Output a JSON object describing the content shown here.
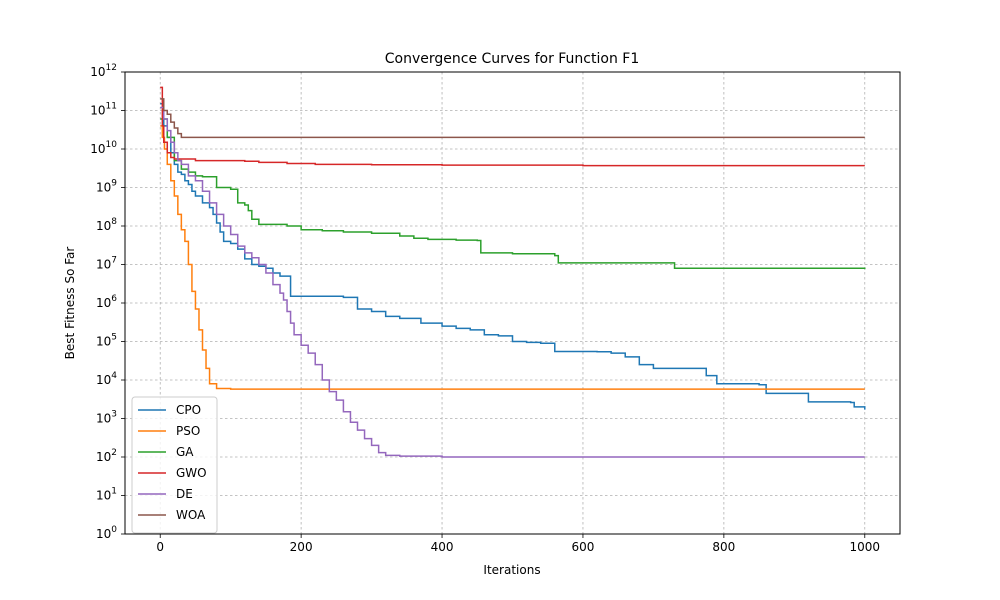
{
  "chart_data": {
    "type": "line",
    "title": "Convergence Curves for Function F1",
    "xlabel": "Iterations",
    "ylabel": "Best Fitness So Far",
    "xlim": [
      -50,
      1050
    ],
    "ylim": [
      1,
      1000000000000
    ],
    "yscale": "log",
    "grid": true,
    "legend_position": "lower-left",
    "x_ticks": [
      0,
      200,
      400,
      600,
      800,
      1000
    ],
    "y_tick_exponents": [
      0,
      1,
      2,
      3,
      4,
      5,
      6,
      7,
      8,
      9,
      10,
      11,
      12
    ],
    "series": [
      {
        "name": "CPO",
        "color": "#1f77b4",
        "points": [
          [
            0,
            150000000000
          ],
          [
            5,
            40000000000
          ],
          [
            10,
            20000000000
          ],
          [
            15,
            8000000000
          ],
          [
            20,
            4000000000
          ],
          [
            25,
            2500000000
          ],
          [
            30,
            2200000000
          ],
          [
            35,
            1500000000
          ],
          [
            40,
            1200000000
          ],
          [
            45,
            800000000
          ],
          [
            50,
            600000000
          ],
          [
            60,
            400000000
          ],
          [
            70,
            300000000
          ],
          [
            75,
            200000000
          ],
          [
            80,
            120000000
          ],
          [
            85,
            70000000
          ],
          [
            90,
            40000000
          ],
          [
            100,
            35000000
          ],
          [
            110,
            25000000
          ],
          [
            120,
            14000000
          ],
          [
            130,
            10000000
          ],
          [
            140,
            9000000
          ],
          [
            150,
            8000000
          ],
          [
            160,
            6000000
          ],
          [
            170,
            5000000
          ],
          [
            185,
            1500000
          ],
          [
            200,
            1500000
          ],
          [
            260,
            1400000
          ],
          [
            280,
            700000
          ],
          [
            300,
            600000
          ],
          [
            320,
            450000
          ],
          [
            340,
            400000
          ],
          [
            370,
            300000
          ],
          [
            400,
            250000
          ],
          [
            420,
            220000
          ],
          [
            440,
            200000
          ],
          [
            460,
            150000
          ],
          [
            480,
            140000
          ],
          [
            500,
            100000
          ],
          [
            520,
            95000
          ],
          [
            540,
            90000
          ],
          [
            560,
            55000
          ],
          [
            620,
            54000
          ],
          [
            640,
            50000
          ],
          [
            660,
            40000
          ],
          [
            680,
            25000
          ],
          [
            700,
            20000
          ],
          [
            760,
            20000
          ],
          [
            775,
            13000
          ],
          [
            790,
            8000
          ],
          [
            850,
            7500
          ],
          [
            860,
            4500
          ],
          [
            910,
            4500
          ],
          [
            920,
            2700
          ],
          [
            980,
            2600
          ],
          [
            985,
            2000
          ],
          [
            1000,
            1700
          ]
        ]
      },
      {
        "name": "PSO",
        "color": "#ff7f0e",
        "points": [
          [
            0,
            40000000000
          ],
          [
            3,
            20000000000
          ],
          [
            6,
            10000000000
          ],
          [
            10,
            4000000000
          ],
          [
            15,
            1500000000
          ],
          [
            20,
            600000000
          ],
          [
            25,
            200000000
          ],
          [
            30,
            80000000
          ],
          [
            35,
            40000000
          ],
          [
            40,
            10000000
          ],
          [
            45,
            2000000
          ],
          [
            50,
            700000
          ],
          [
            55,
            200000
          ],
          [
            60,
            60000
          ],
          [
            65,
            20000
          ],
          [
            70,
            8000
          ],
          [
            80,
            6000
          ],
          [
            100,
            5800
          ],
          [
            200,
            5800
          ],
          [
            600,
            5800
          ],
          [
            1000,
            5800
          ]
        ]
      },
      {
        "name": "GA",
        "color": "#2ca02c",
        "points": [
          [
            0,
            60000000000
          ],
          [
            10,
            20000000000
          ],
          [
            20,
            5000000000
          ],
          [
            30,
            3000000000
          ],
          [
            40,
            2500000000
          ],
          [
            50,
            2000000000
          ],
          [
            60,
            1900000000
          ],
          [
            80,
            1000000000
          ],
          [
            100,
            900000000
          ],
          [
            110,
            400000000
          ],
          [
            120,
            350000000
          ],
          [
            125,
            250000000
          ],
          [
            130,
            150000000
          ],
          [
            140,
            110000000
          ],
          [
            170,
            110000000
          ],
          [
            180,
            100000000
          ],
          [
            200,
            80000000
          ],
          [
            230,
            75000000
          ],
          [
            260,
            70000000
          ],
          [
            300,
            65000000
          ],
          [
            340,
            55000000
          ],
          [
            360,
            48000000
          ],
          [
            380,
            45000000
          ],
          [
            420,
            43000000
          ],
          [
            450,
            42000000
          ],
          [
            455,
            20000000
          ],
          [
            500,
            19000000
          ],
          [
            560,
            17000000
          ],
          [
            565,
            11000000
          ],
          [
            700,
            11000000
          ],
          [
            730,
            8000000
          ],
          [
            800,
            8000000
          ],
          [
            1000,
            7500000
          ]
        ]
      },
      {
        "name": "GWO",
        "color": "#d62728",
        "points": [
          [
            0,
            400000000000
          ],
          [
            3,
            40000000000
          ],
          [
            5,
            15000000000
          ],
          [
            10,
            8000000000
          ],
          [
            15,
            6000000000
          ],
          [
            20,
            5500000000
          ],
          [
            50,
            5000000000
          ],
          [
            80,
            5000000000
          ],
          [
            120,
            4800000000
          ],
          [
            140,
            4500000000
          ],
          [
            180,
            4200000000
          ],
          [
            220,
            4000000000
          ],
          [
            300,
            3900000000
          ],
          [
            400,
            3800000000
          ],
          [
            600,
            3700000000
          ],
          [
            800,
            3700000000
          ],
          [
            1000,
            3700000000
          ]
        ]
      },
      {
        "name": "DE",
        "color": "#9467bd",
        "points": [
          [
            0,
            120000000000
          ],
          [
            5,
            60000000000
          ],
          [
            10,
            30000000000
          ],
          [
            15,
            15000000000
          ],
          [
            20,
            8000000000
          ],
          [
            25,
            5000000000
          ],
          [
            30,
            4000000000
          ],
          [
            40,
            2000000000
          ],
          [
            50,
            1500000000
          ],
          [
            60,
            800000000
          ],
          [
            70,
            400000000
          ],
          [
            80,
            200000000
          ],
          [
            90,
            100000000
          ],
          [
            100,
            60000000
          ],
          [
            110,
            30000000
          ],
          [
            120,
            20000000
          ],
          [
            130,
            15000000
          ],
          [
            140,
            10000000
          ],
          [
            150,
            6000000
          ],
          [
            160,
            3000000
          ],
          [
            170,
            1800000
          ],
          [
            175,
            1200000
          ],
          [
            180,
            600000
          ],
          [
            185,
            300000
          ],
          [
            190,
            150000
          ],
          [
            200,
            80000
          ],
          [
            210,
            50000
          ],
          [
            220,
            25000
          ],
          [
            230,
            10000
          ],
          [
            240,
            5000
          ],
          [
            250,
            3000
          ],
          [
            260,
            1500
          ],
          [
            270,
            800
          ],
          [
            280,
            500
          ],
          [
            290,
            300
          ],
          [
            300,
            200
          ],
          [
            310,
            130
          ],
          [
            320,
            110
          ],
          [
            340,
            105
          ],
          [
            400,
            100
          ],
          [
            1000,
            100
          ]
        ]
      },
      {
        "name": "WOA",
        "color": "#8c564b",
        "points": [
          [
            0,
            200000000000
          ],
          [
            5,
            100000000000
          ],
          [
            10,
            80000000000
          ],
          [
            15,
            50000000000
          ],
          [
            20,
            35000000000
          ],
          [
            25,
            25000000000
          ],
          [
            30,
            20000000000
          ],
          [
            100,
            20000000000
          ],
          [
            500,
            20000000000
          ],
          [
            1000,
            20000000000
          ]
        ]
      }
    ]
  }
}
